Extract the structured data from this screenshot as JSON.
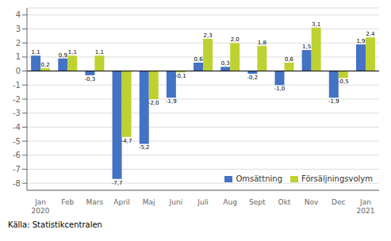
{
  "chart_data": {
    "type": "bar",
    "categories": [
      "Jan\n2020",
      "Feb",
      "Mars",
      "April",
      "Maj",
      "Juni",
      "Juli",
      "Aug",
      "Sept",
      "Okt",
      "Nov",
      "Dec",
      "Jan\n2021"
    ],
    "series": [
      {
        "name": "Omsättning",
        "color": "#4472c4",
        "values": [
          1.1,
          0.9,
          -0.3,
          -7.7,
          -5.2,
          -1.9,
          0.6,
          0.3,
          -0.2,
          -1.0,
          1.5,
          -1.9,
          1.9
        ],
        "value_labels": [
          "1,1",
          "0,9",
          "-0,3",
          "-7,7",
          "-5,2",
          "-1,9",
          "0,6",
          "0,3",
          "-0,2",
          "-1,0",
          "1,5",
          "-1,9",
          "1,9"
        ]
      },
      {
        "name": "Försäljningsvolym",
        "color": "#bdd231",
        "values": [
          0.2,
          1.1,
          1.1,
          -4.7,
          -2.0,
          -0.1,
          2.3,
          2.0,
          1.8,
          0.6,
          3.1,
          -0.5,
          2.4
        ],
        "value_labels": [
          "0,2",
          "1,1",
          "1,1",
          "-4,7",
          "-2,0",
          "-0,1",
          "2,3",
          "2,0",
          "1,8",
          "0,6",
          "3,1",
          "-0,5",
          "2,4"
        ]
      }
    ],
    "ylim": [
      -8.5,
      4.5
    ],
    "yticks": [
      -8,
      -7,
      -6,
      -5,
      -4,
      -3,
      -2,
      -1,
      0,
      1,
      2,
      3,
      4
    ],
    "grid": true,
    "legend": "lower right",
    "data_labels": true,
    "annotations": [
      "Källa: Statistikcentralen"
    ]
  }
}
